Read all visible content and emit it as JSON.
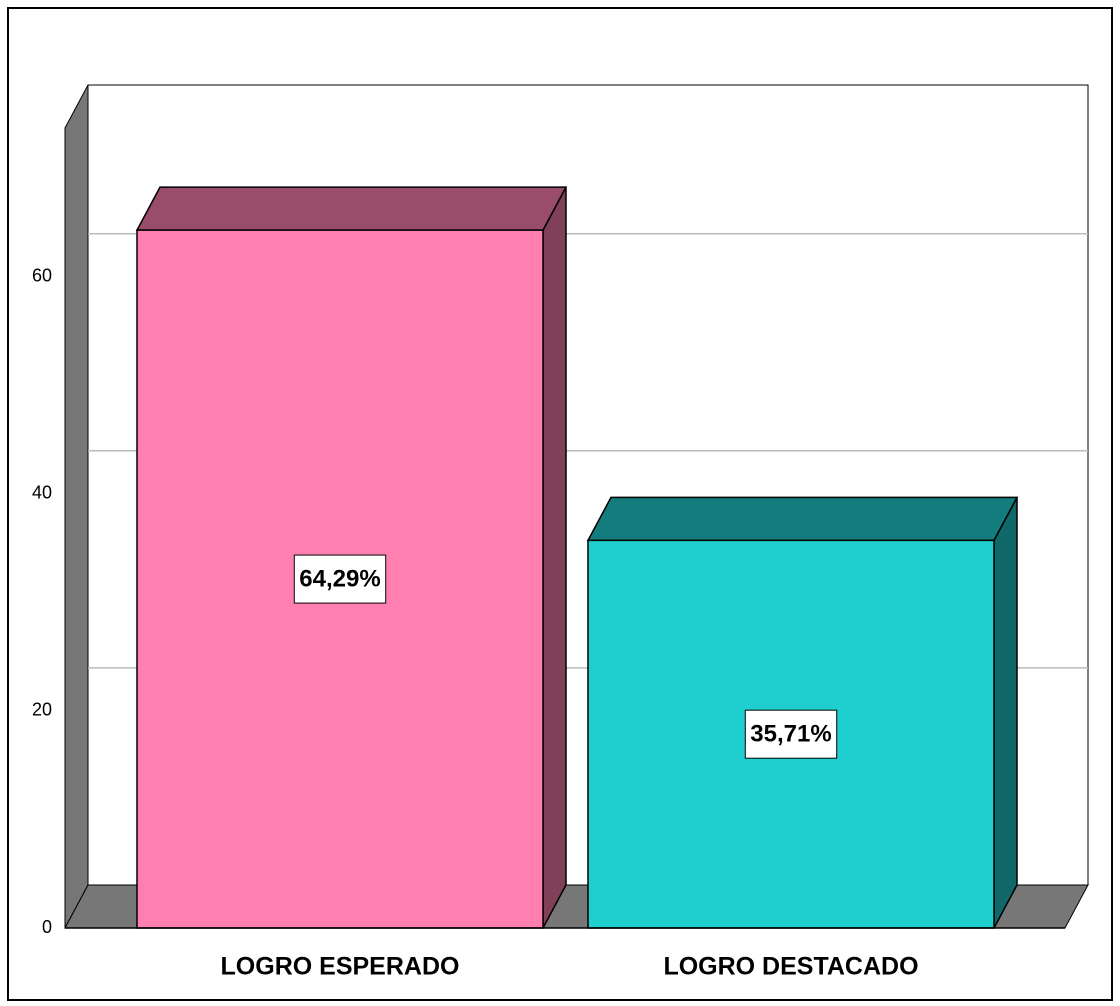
{
  "chart_data": {
    "type": "bar3d",
    "categories": [
      "LOGRO ESPERADO",
      "LOGRO DESTACADO"
    ],
    "values": [
      64.29,
      35.71
    ],
    "value_labels": [
      "64,29%",
      "35,71%"
    ],
    "colors": [
      "#ff80b0",
      "#1fcfcf"
    ],
    "ylim": [
      0,
      73.7
    ],
    "yticks": [
      0,
      20,
      40,
      60
    ],
    "grid": true
  }
}
